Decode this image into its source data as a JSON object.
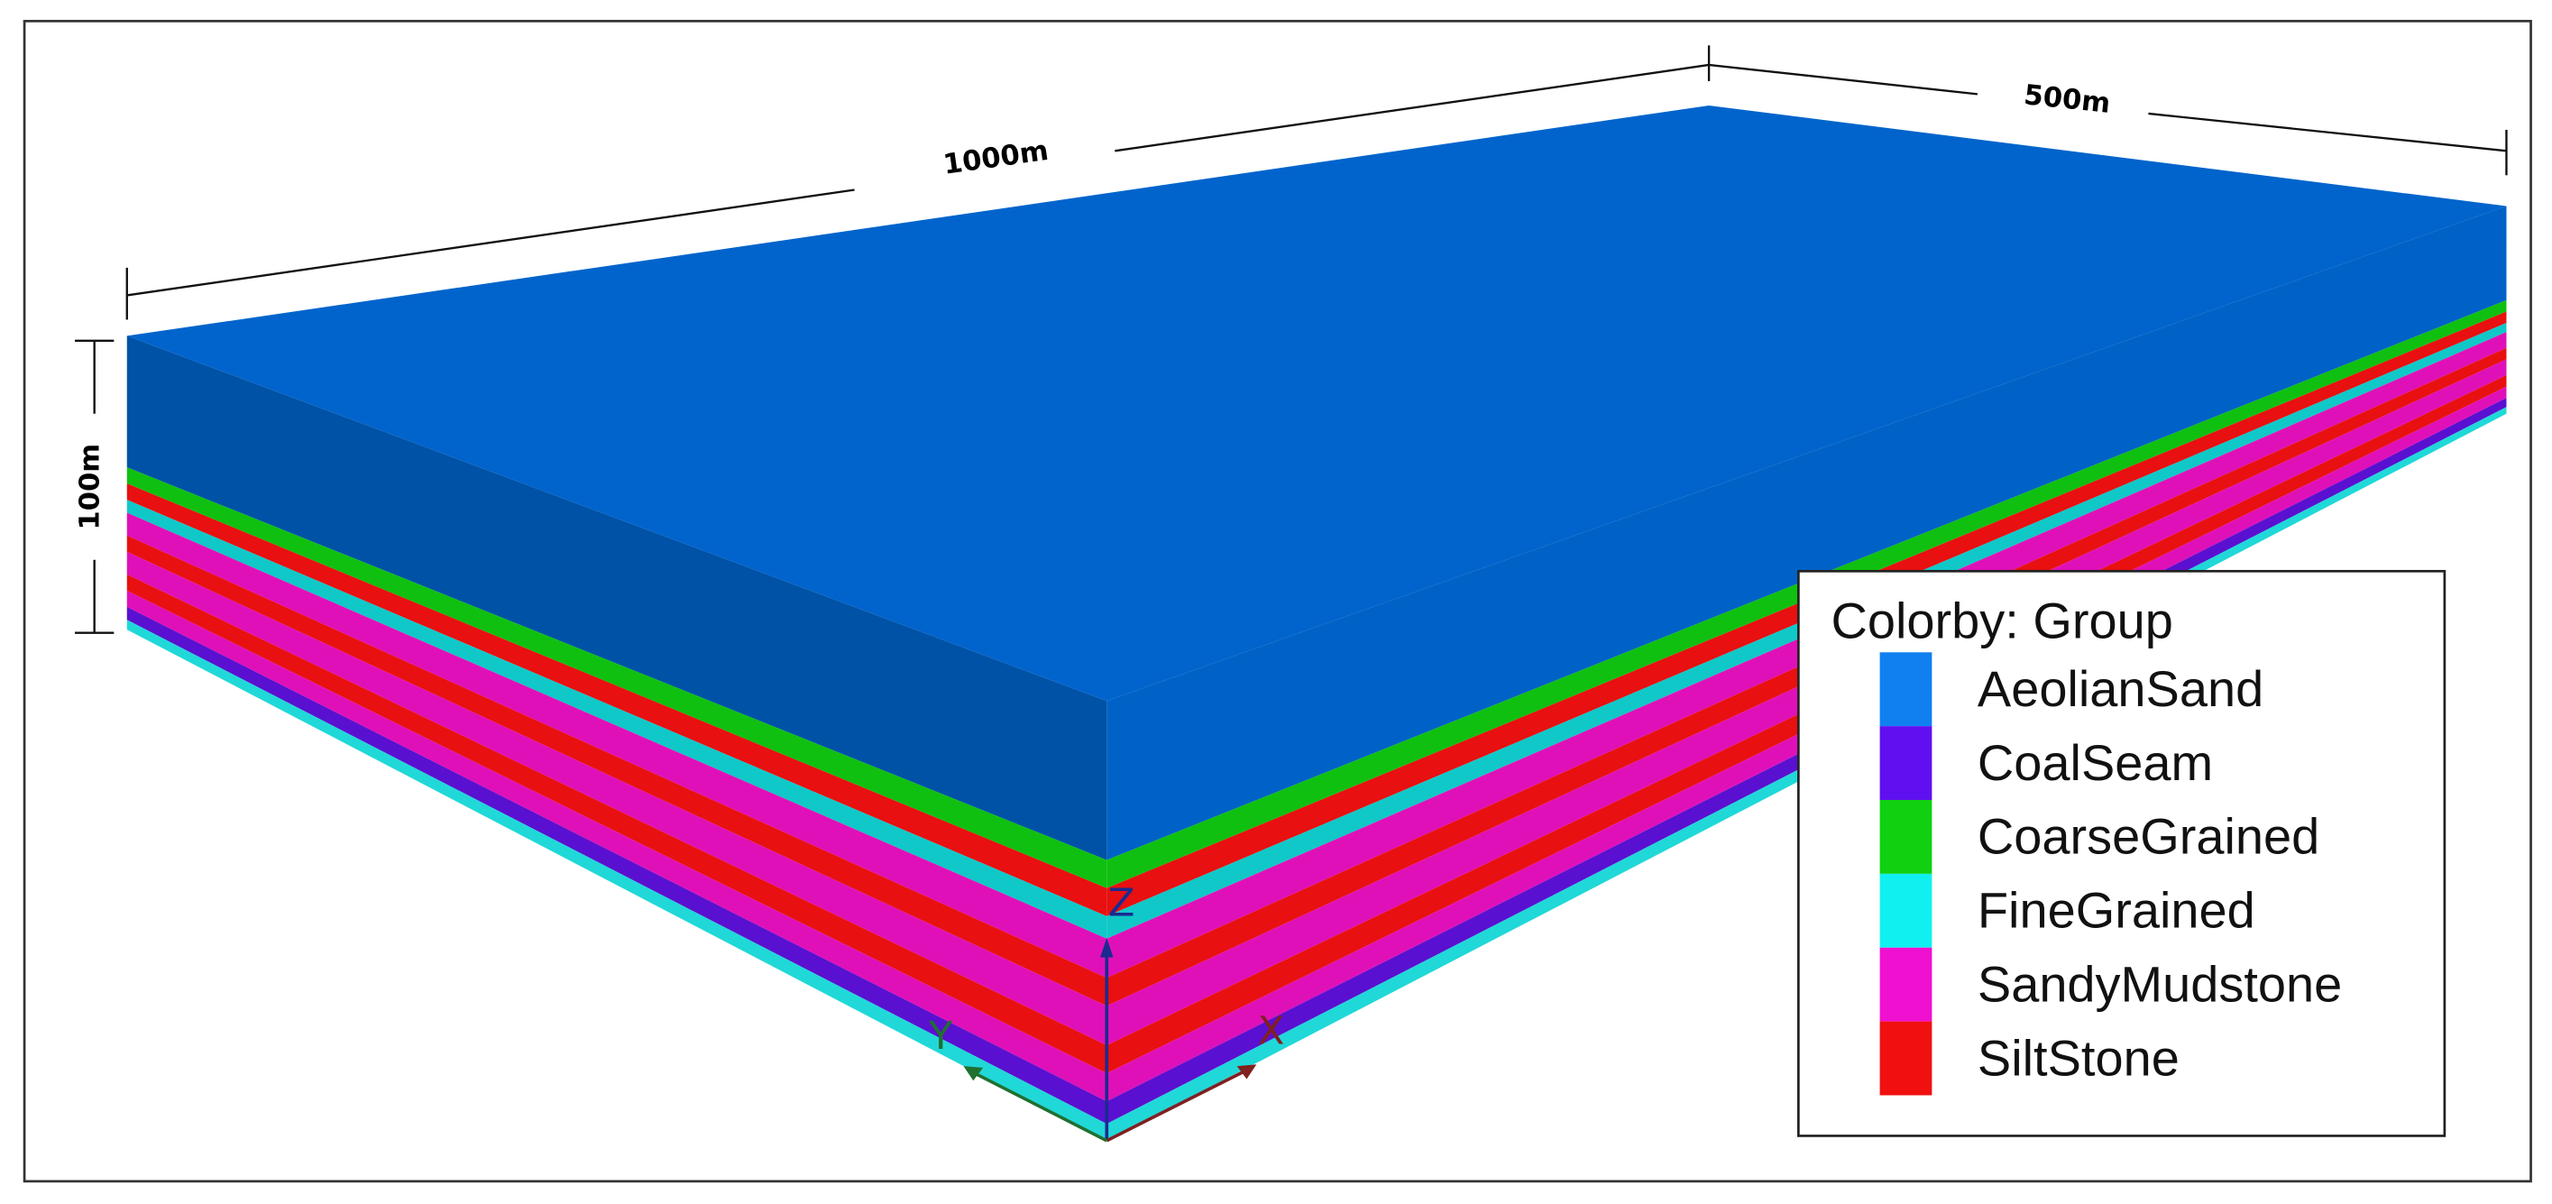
{
  "dimensions": {
    "length": "1000m",
    "width": "500m",
    "height": "100m"
  },
  "axes": {
    "x": "X",
    "y": "Y",
    "z": "Z"
  },
  "legend": {
    "title": "Colorby: Group",
    "items": [
      {
        "label": "AeolianSand",
        "color": "#1080f0"
      },
      {
        "label": "CoalSeam",
        "color": "#6010f0"
      },
      {
        "label": "CoarseGrained",
        "color": "#10d010"
      },
      {
        "label": "FineGrained",
        "color": "#10f0f0"
      },
      {
        "label": "SandyMudstone",
        "color": "#f010d0"
      },
      {
        "label": "SiltStone",
        "color": "#f01010"
      }
    ]
  }
}
